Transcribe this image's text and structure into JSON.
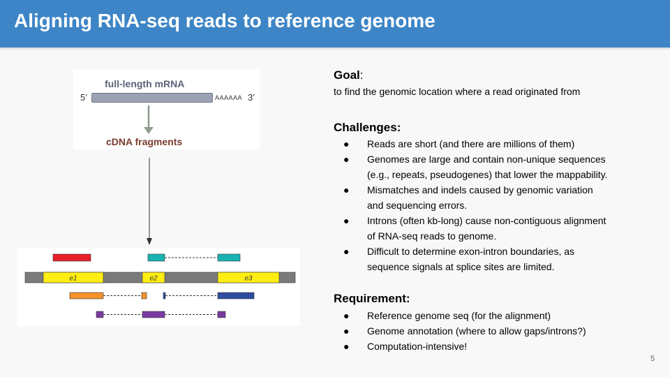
{
  "header": {
    "title": "Aligning RNA-seq reads to reference genome"
  },
  "mrna_figure": {
    "title": "full-length mRNA",
    "five_prime": "5’",
    "three_prime": "3’",
    "polya": "AAAAAA",
    "cdna_label": "cDNA fragments"
  },
  "alignment_figure": {
    "exons": [
      "e1",
      "e2",
      "e3"
    ],
    "colors": {
      "exon": "#ffee11",
      "intron": "#7a7a7a",
      "red_read": "#e8202a",
      "teal_read": "#19b2b2",
      "orange_read": "#f5922a",
      "blue_read": "#2e4da0",
      "purple_read": "#7a3aa0"
    }
  },
  "goal": {
    "title": "Goal",
    "text": "to find the genomic location where a read originated from"
  },
  "challenges": {
    "title": "Challenges:",
    "bullet": "●",
    "items": [
      [
        "Reads are short (and there are millions of them)"
      ],
      [
        "Genomes are large and contain non-unique sequences",
        "(e.g., repeats, pseudogenes) that lower the mappability."
      ],
      [
        "Mismatches and indels caused by genomic variation",
        "and sequencing errors."
      ],
      [
        "Introns (often kb-long) cause non-contiguous alignment",
        "of RNA-seq reads to genome."
      ],
      [
        "Difficult to determine exon-intron boundaries, as",
        "sequence signals at splice sites are limited."
      ]
    ]
  },
  "requirement": {
    "title": "Requirement:",
    "bullet": "●",
    "items": [
      [
        "Reference genome seq (for the alignment)"
      ],
      [
        "Genome annotation (where to allow gaps/introns?)"
      ],
      [
        "Computation-intensive!"
      ]
    ]
  },
  "footer": {
    "page_number": "5"
  }
}
